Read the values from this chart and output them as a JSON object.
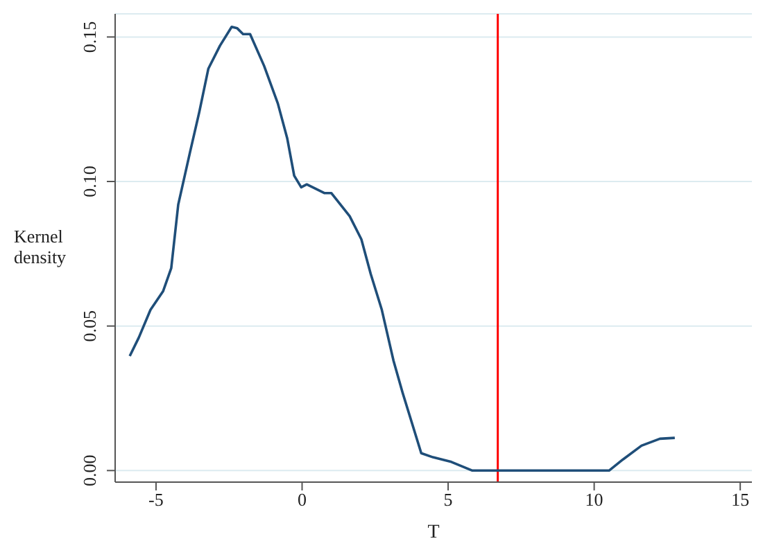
{
  "chart_data": {
    "type": "line",
    "xlabel": "T",
    "ylabel": "Kernel density",
    "x": [
      -5.9,
      -5.59,
      -5.19,
      -4.76,
      -4.48,
      -4.24,
      -3.84,
      -3.52,
      -3.21,
      -2.81,
      -2.41,
      -2.22,
      -2.02,
      -1.78,
      -1.3,
      -0.83,
      -0.51,
      -0.27,
      -0.03,
      0.16,
      0.76,
      1.0,
      1.63,
      2.03,
      2.35,
      2.73,
      3.13,
      3.44,
      4.08,
      4.48,
      5.11,
      5.83,
      10.51,
      10.98,
      11.62,
      12.25,
      12.76
    ],
    "series": [
      {
        "color": "#1f4e79",
        "values": [
          0.0396,
          0.046,
          0.0556,
          0.062,
          0.07,
          0.092,
          0.11,
          0.124,
          0.139,
          0.147,
          0.1535,
          0.153,
          0.151,
          0.151,
          0.14,
          0.127,
          0.115,
          0.102,
          0.098,
          0.099,
          0.096,
          0.096,
          0.088,
          0.08,
          0.068,
          0.0556,
          0.038,
          0.027,
          0.006,
          0.0046,
          0.003,
          0,
          0,
          0.0038,
          0.0086,
          0.011,
          0.0113
        ]
      }
    ],
    "xlim": [
      -6.4,
      15.4
    ],
    "xticks": [
      -5,
      0,
      5,
      10,
      15
    ],
    "ylim": [
      -0.004,
      0.158
    ],
    "yticks": [
      {
        "value": 0,
        "label": "0.00"
      },
      {
        "value": 0.05,
        "label": "0.05"
      },
      {
        "value": 0.1,
        "label": "0.10"
      },
      {
        "value": 0.15,
        "label": "0.15"
      }
    ],
    "ref_lines": [
      {
        "axis": "x",
        "value": 6.7,
        "color": "#ff0000"
      }
    ],
    "grid": "y",
    "marker": "none",
    "line_style": "solid"
  }
}
